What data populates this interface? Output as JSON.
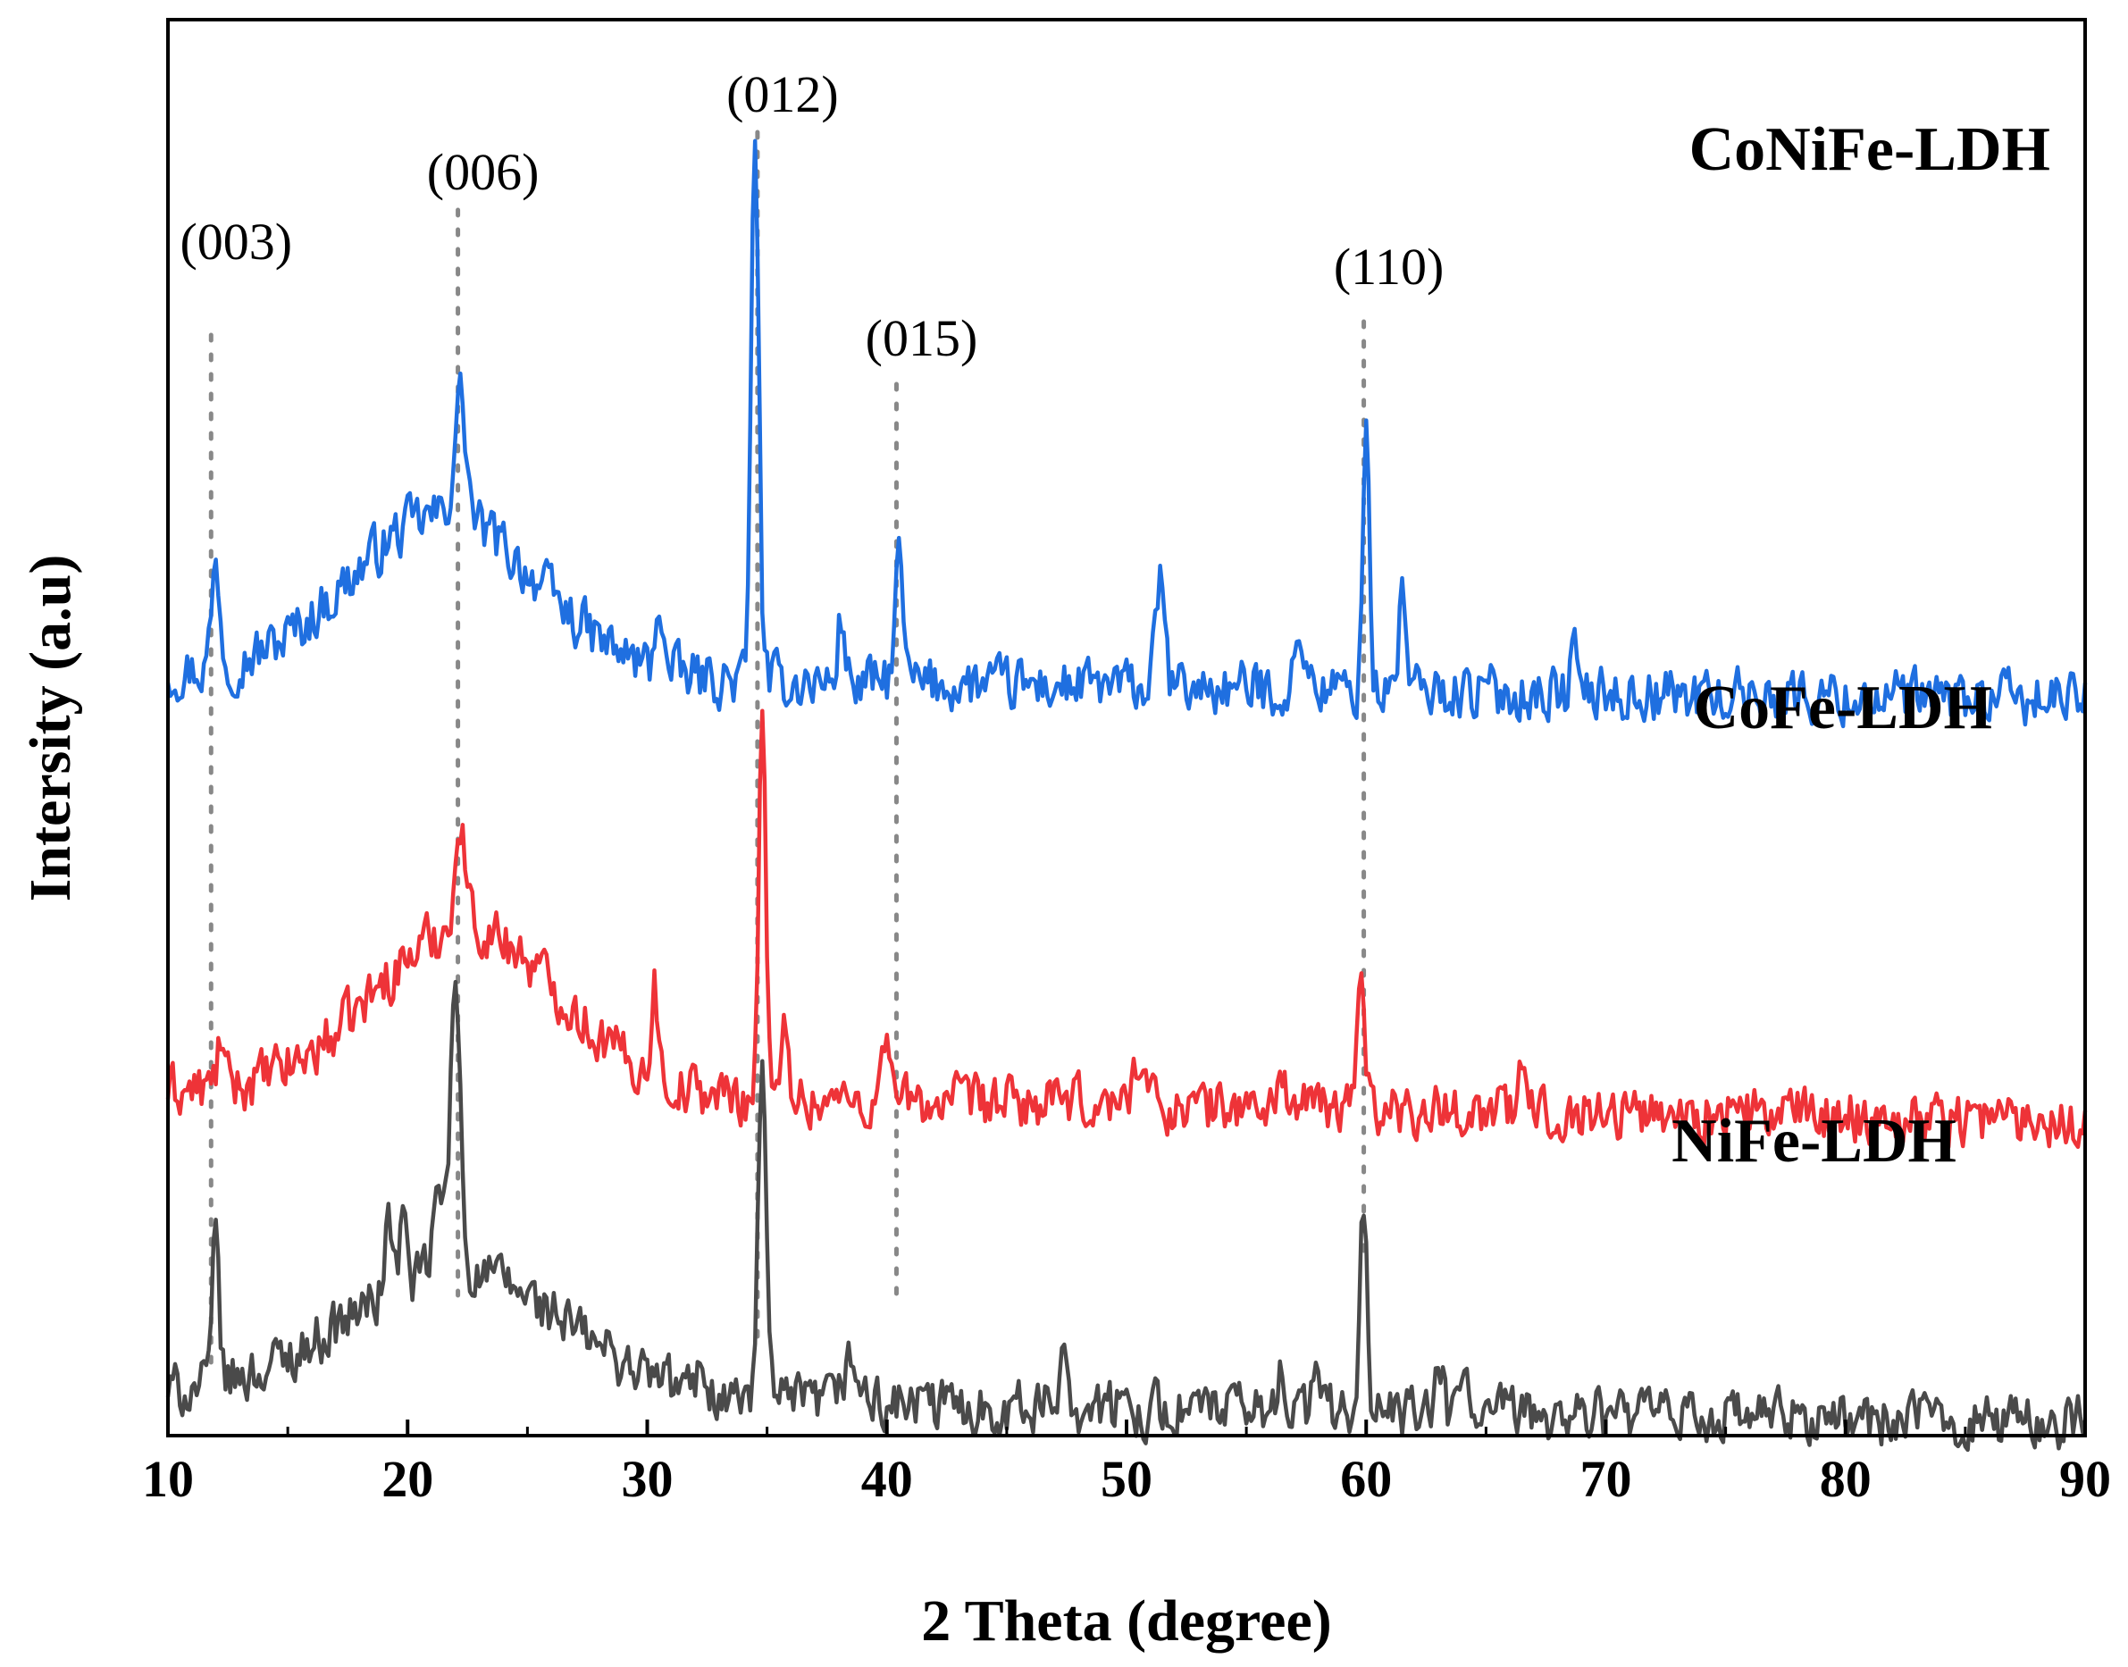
{
  "chart_data": {
    "type": "line",
    "title": "",
    "xlabel": "2 Theta (degree)",
    "ylabel": "Intersity (a.u)",
    "xlim": [
      10,
      90
    ],
    "x_ticks": [
      10,
      20,
      30,
      40,
      50,
      60,
      70,
      80,
      90
    ],
    "y_ticks_shown": false,
    "grid": false,
    "series": [
      {
        "name": "CoNiFe-LDH",
        "color": "#1f6fe0",
        "baseline": 5.65,
        "noise": 0.18,
        "peaks": [
          {
            "x": 12.0,
            "height": 0.75,
            "width": 0.25
          },
          {
            "x": 22.2,
            "height": 0.9,
            "width": 0.35
          },
          {
            "x": 30.5,
            "height": 0.55,
            "width": 0.2
          },
          {
            "x": 34.5,
            "height": 4.1,
            "width": 0.22
          },
          {
            "x": 38.1,
            "height": 0.5,
            "width": 0.2
          },
          {
            "x": 40.5,
            "height": 0.9,
            "width": 0.25
          },
          {
            "x": 51.4,
            "height": 0.8,
            "width": 0.25
          },
          {
            "x": 57.3,
            "height": 0.4,
            "width": 0.3
          },
          {
            "x": 60.0,
            "height": 2.1,
            "width": 0.18
          },
          {
            "x": 61.5,
            "height": 0.85,
            "width": 0.18
          },
          {
            "x": 68.7,
            "height": 0.35,
            "width": 0.2
          }
        ],
        "humps": [
          {
            "x": 21.5,
            "height": 1.2,
            "width": 5.5
          }
        ]
      },
      {
        "name": "CoFe-LDH",
        "color": "#ee3338",
        "baseline": 2.55,
        "noise": 0.18,
        "peaks": [
          {
            "x": 12.2,
            "height": 0.35,
            "width": 0.2
          },
          {
            "x": 22.2,
            "height": 0.7,
            "width": 0.35
          },
          {
            "x": 30.3,
            "height": 0.7,
            "width": 0.2
          },
          {
            "x": 34.8,
            "height": 3.0,
            "width": 0.2
          },
          {
            "x": 35.8,
            "height": 0.6,
            "width": 0.2
          },
          {
            "x": 40.0,
            "height": 0.6,
            "width": 0.22
          },
          {
            "x": 50.5,
            "height": 0.35,
            "width": 0.4
          },
          {
            "x": 56.5,
            "height": 0.3,
            "width": 0.2
          },
          {
            "x": 59.8,
            "height": 1.1,
            "width": 0.22
          },
          {
            "x": 66.5,
            "height": 0.3,
            "width": 0.2
          }
        ],
        "humps": [
          {
            "x": 22.5,
            "height": 1.25,
            "width": 5.5
          }
        ]
      },
      {
        "name": "NiFe-LDH",
        "color": "#4a4a4a",
        "baseline": 0.3,
        "noise": 0.18,
        "peaks": [
          {
            "x": 12.0,
            "height": 1.1,
            "width": 0.2
          },
          {
            "x": 19.2,
            "height": 0.6,
            "width": 0.2
          },
          {
            "x": 19.8,
            "height": 0.5,
            "width": 0.2
          },
          {
            "x": 21.3,
            "height": 0.6,
            "width": 0.3
          },
          {
            "x": 22.0,
            "height": 2.1,
            "width": 0.3
          },
          {
            "x": 32.3,
            "height": 0.3,
            "width": 0.2
          },
          {
            "x": 34.8,
            "height": 2.6,
            "width": 0.22
          },
          {
            "x": 38.5,
            "height": 0.3,
            "width": 0.5
          },
          {
            "x": 47.4,
            "height": 0.5,
            "width": 0.25
          },
          {
            "x": 56.5,
            "height": 0.4,
            "width": 0.2
          },
          {
            "x": 57.9,
            "height": 0.45,
            "width": 0.2
          },
          {
            "x": 59.9,
            "height": 1.55,
            "width": 0.2
          },
          {
            "x": 63.1,
            "height": 0.35,
            "width": 0.2
          },
          {
            "x": 64.1,
            "height": 0.3,
            "width": 0.2
          }
        ],
        "humps": [
          {
            "x": 22.0,
            "height": 0.95,
            "width": 6.5
          }
        ]
      }
    ],
    "reference_lines": [
      {
        "label": "(003)",
        "x": 11.8
      },
      {
        "label": "(006)",
        "x": 22.1
      },
      {
        "label": "(012)",
        "x": 34.6
      },
      {
        "label": "(015)",
        "x": 40.4
      },
      {
        "label": "(110)",
        "x": 59.9
      }
    ]
  }
}
